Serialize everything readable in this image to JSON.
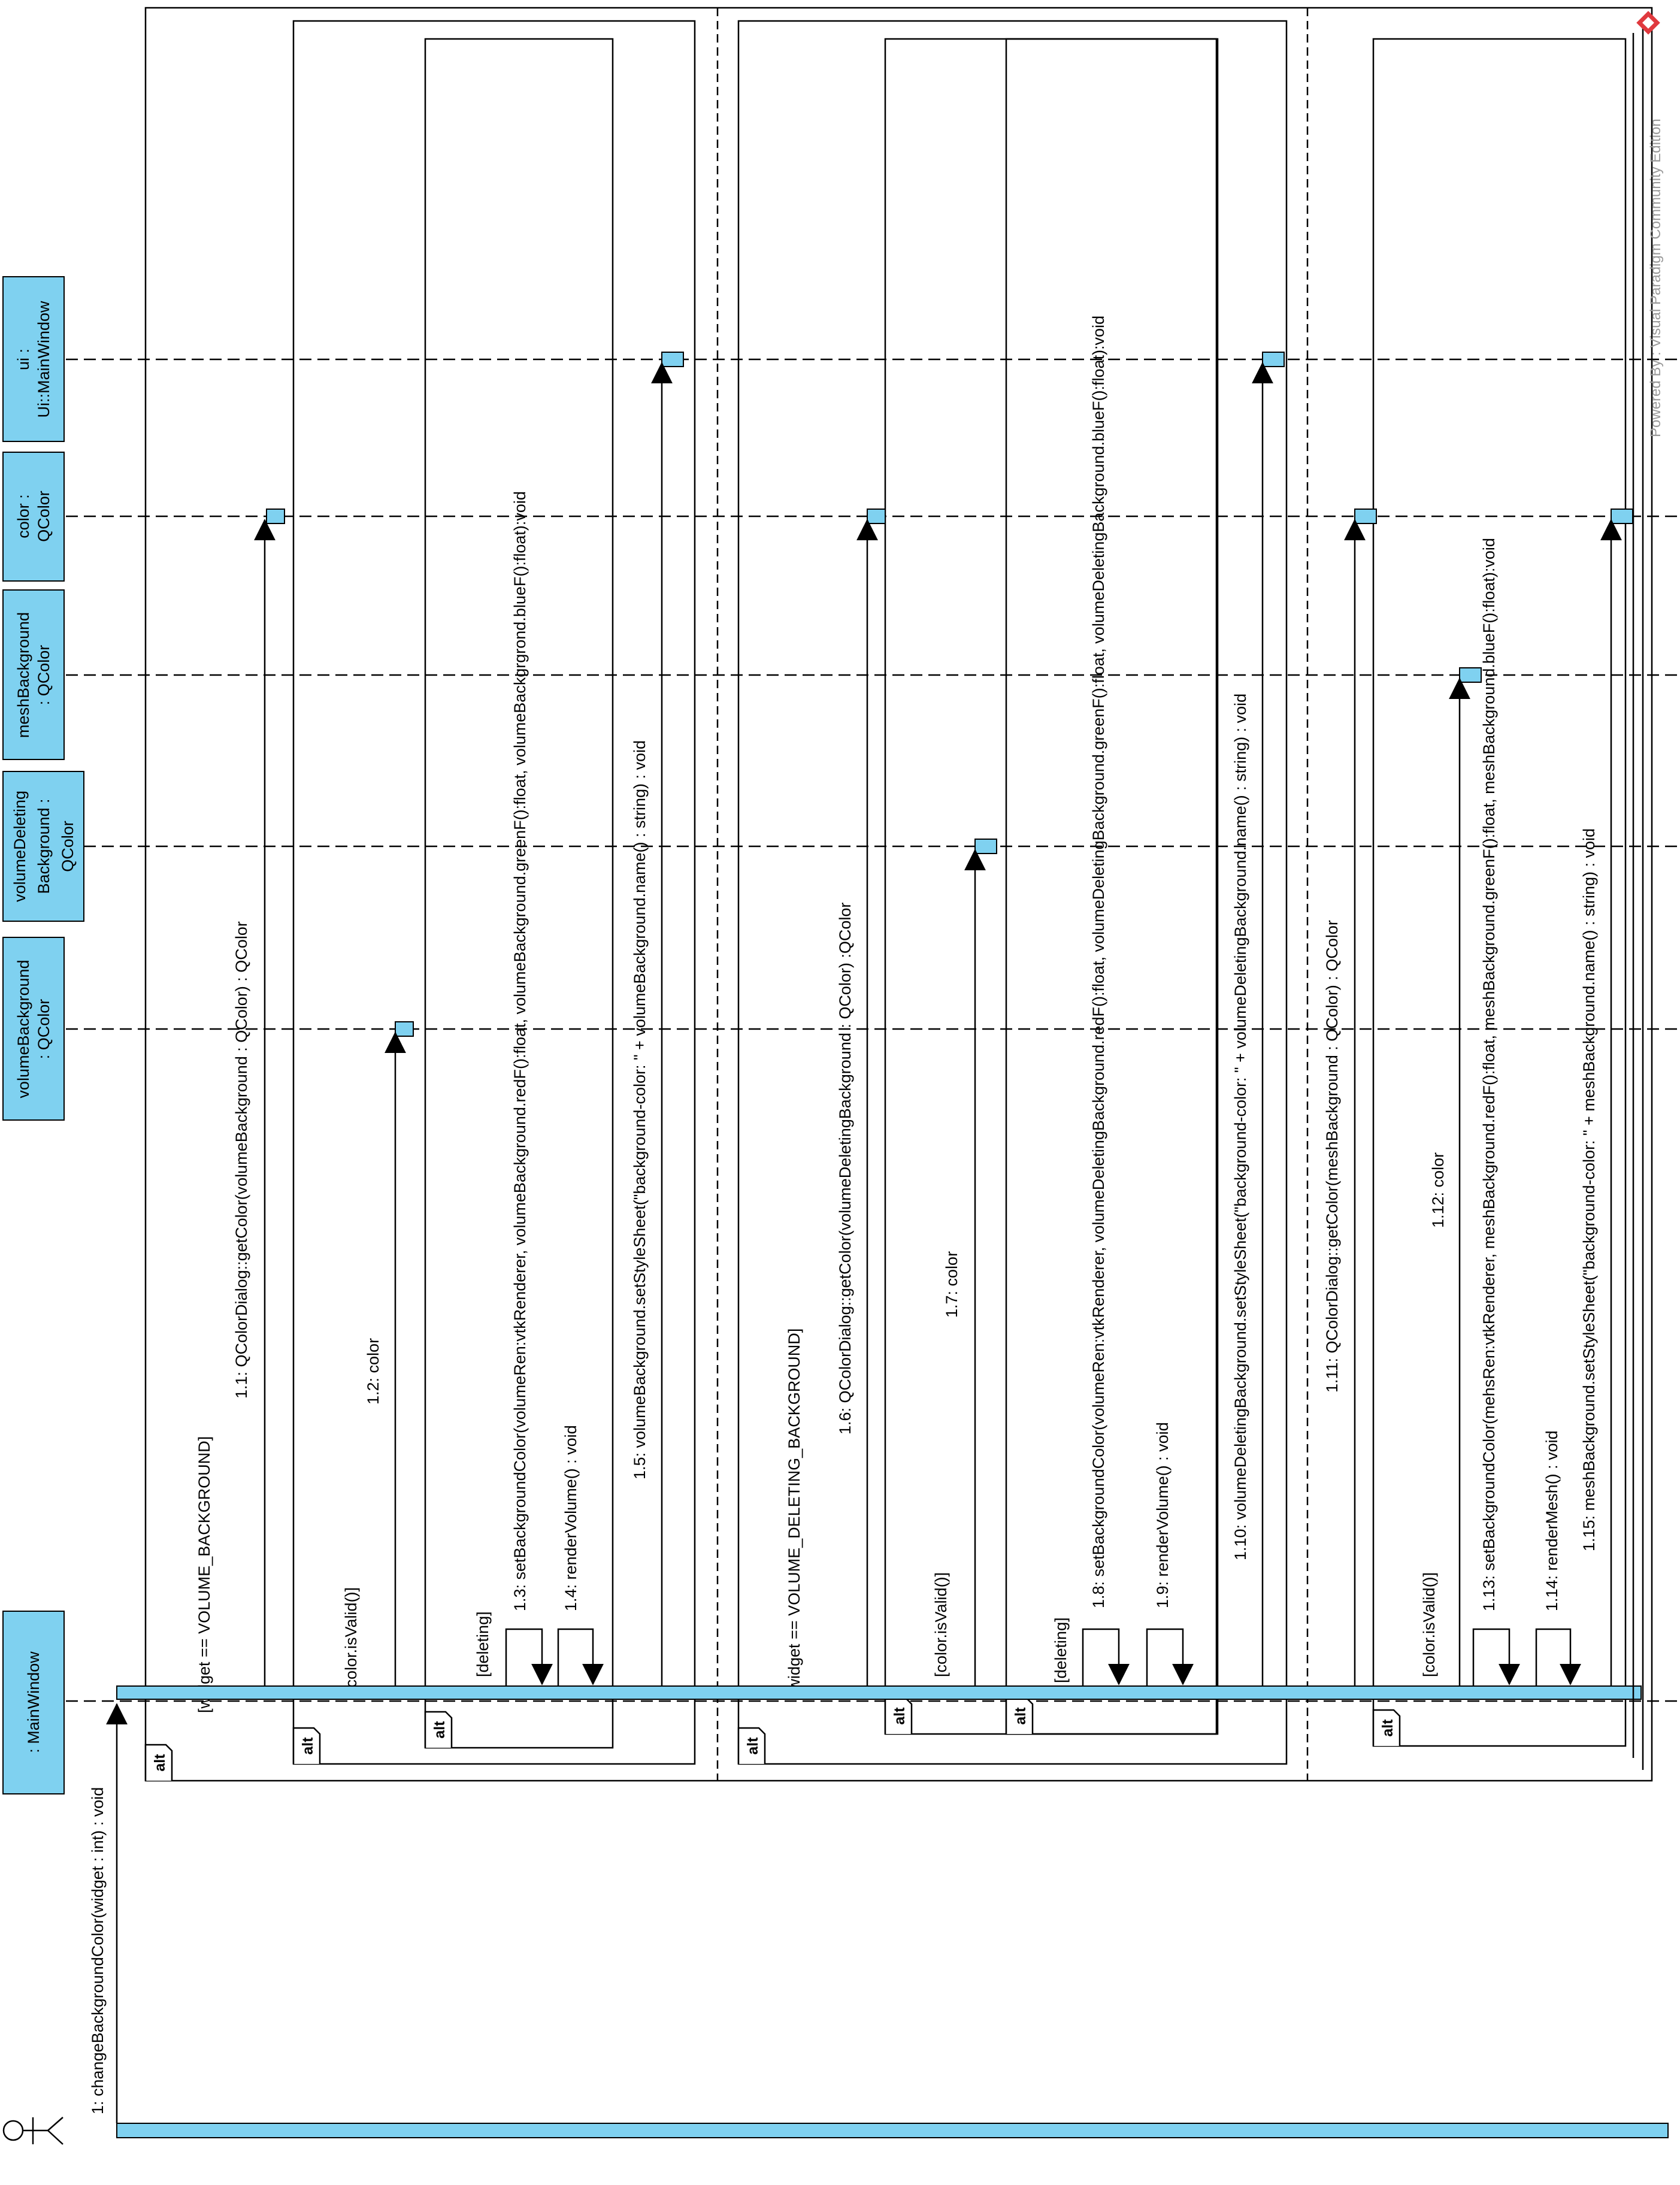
{
  "participants": [
    {
      "id": "mainwindow",
      "label": ": MainWindow"
    },
    {
      "id": "volumebackground",
      "label": "volumeBackground : QColor"
    },
    {
      "id": "volumedeletingbackground",
      "label": "volumeDeleting Background : QColor"
    },
    {
      "id": "meshbackground",
      "label": "meshBackground : QColor"
    },
    {
      "id": "color",
      "label": "color : QColor"
    },
    {
      "id": "ui",
      "label": "ui : Ui::MainWindow"
    }
  ],
  "fragments": {
    "operator": "alt",
    "guards": {
      "volume": "[widget == VOLUME_BACKGROUND]",
      "deleting_branch": "[widget == VOLUME_DELETING_BACKGROUND]",
      "valid1": "[color.isValid()]",
      "deleting1": "[deleting]",
      "valid2": "[color.isValid()]",
      "deleting2": "[deleting]",
      "valid3": "[color.isValid()]"
    }
  },
  "messages": {
    "m1": "1: changeBackgroundColor(widget : int) : void",
    "m1_1": "1.1: QColorDialog::getColor(volumeBackground : QColor) : QColor",
    "m1_2": "1.2: color",
    "m1_3": "1.3: setBackgroundColor(volumeRen:vtkRenderer, volumeBackground.redF():float, volumeBackground.greenF():float, volumeBackgrgrond.blueF():float):void",
    "m1_4": "1.4: renderVolume() : void",
    "m1_5": "1.5: volumeBackground.setStyleSheet(\"background-color: \" + volumeBackground.name() : string) : void",
    "m1_6": "1.6: QColorDialog::getColor(volumeDeletingBackground : QColor) :QColor",
    "m1_7": "1.7: color",
    "m1_8": "1.8: setBackgroundColor(volumeRen:vtkRenderer, volumeDeletingBackground.redF():float, volumeDeletingBackground.greenF():float, volumeDeletingBackground.blueF():float):void",
    "m1_9": "1.9: renderVolume() : void",
    "m1_10": "1.10: volumeDeletingBackground.setStyleSheet(\"background-color: \" + volumeDeletingBackground.name() : string) : void",
    "m1_11": "1.11: QColorDialog::getColor(meshBackground : QColor) : QColor",
    "m1_12": "1.12: color",
    "m1_13": "1.13: setBackgroundColor(mehsRen:vtkRenderer, meshBackground.redF():float, meshBackground.greenF():float, meshBackground.blueF():float):void",
    "m1_14": "1.14: renderMesh() : void",
    "m1_15": "1.15: meshBackground.setStyleSheet(\"background-color: \" + meshBackground.name() : string) : void"
  },
  "watermark": "Powered By : Visual Paradigm Community Edition",
  "colors": {
    "header_fill": "#7fd1f0",
    "activation_fill": "#7fd1f0",
    "line": "#000000",
    "watermark_icon": "#e0393e"
  }
}
